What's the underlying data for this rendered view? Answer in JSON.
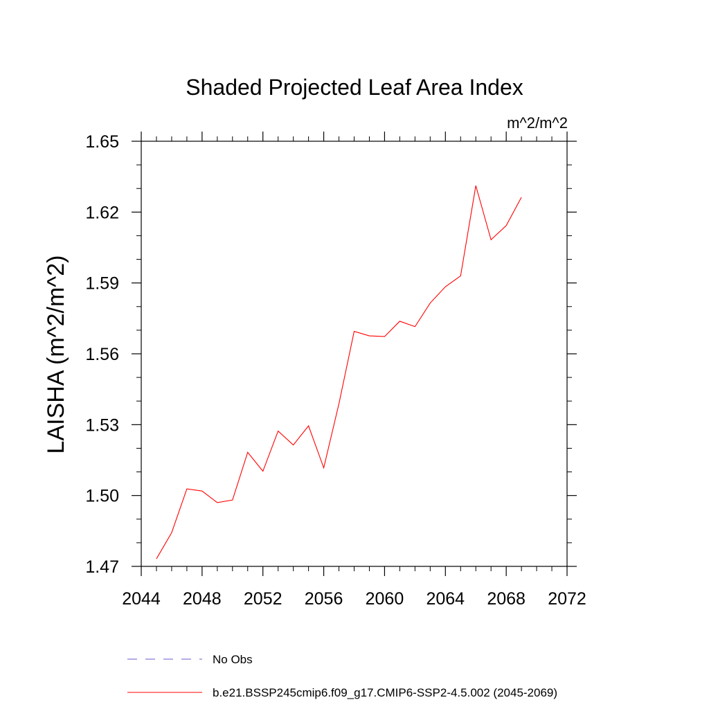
{
  "chart_data": {
    "type": "line",
    "title": "Shaded Projected Leaf Area Index",
    "units_label": "m^2/m^2",
    "xlabel": "",
    "ylabel": "LAISHA  (m^2/m^2)",
    "xlim": [
      2044,
      2072
    ],
    "ylim": [
      1.47,
      1.65
    ],
    "x_ticks": [
      2044,
      2048,
      2052,
      2056,
      2060,
      2064,
      2068,
      2072
    ],
    "x_tick_labels": [
      "2044",
      "2048",
      "2052",
      "2056",
      "2060",
      "2064",
      "2068",
      "2072"
    ],
    "y_ticks": [
      1.47,
      1.5,
      1.53,
      1.56,
      1.59,
      1.62,
      1.65
    ],
    "y_tick_labels": [
      "1.47",
      "1.50",
      "1.53",
      "1.56",
      "1.59",
      "1.62",
      "1.65"
    ],
    "grid": false,
    "legend_position": "bottom",
    "series": [
      {
        "name": "No Obs",
        "color": "#6a5acd",
        "dashed": true,
        "x": [],
        "values": []
      },
      {
        "name": "b.e21.BSSP245cmip6.f09_g17.CMIP6-SSP2-4.5.002 (2045-2069)",
        "color": "#ff0000",
        "dashed": false,
        "x": [
          2045,
          2046,
          2047,
          2048,
          2049,
          2050,
          2051,
          2052,
          2053,
          2054,
          2055,
          2056,
          2057,
          2058,
          2059,
          2060,
          2061,
          2062,
          2063,
          2064,
          2065,
          2066,
          2067,
          2068,
          2069
        ],
        "values": [
          1.4732,
          1.4843,
          1.5028,
          1.5019,
          1.497,
          1.4981,
          1.5183,
          1.5103,
          1.5273,
          1.5214,
          1.5295,
          1.5117,
          1.5389,
          1.5695,
          1.5676,
          1.5673,
          1.5738,
          1.5715,
          1.5815,
          1.5884,
          1.593,
          1.6312,
          1.6083,
          1.6143,
          1.6263
        ]
      }
    ]
  }
}
